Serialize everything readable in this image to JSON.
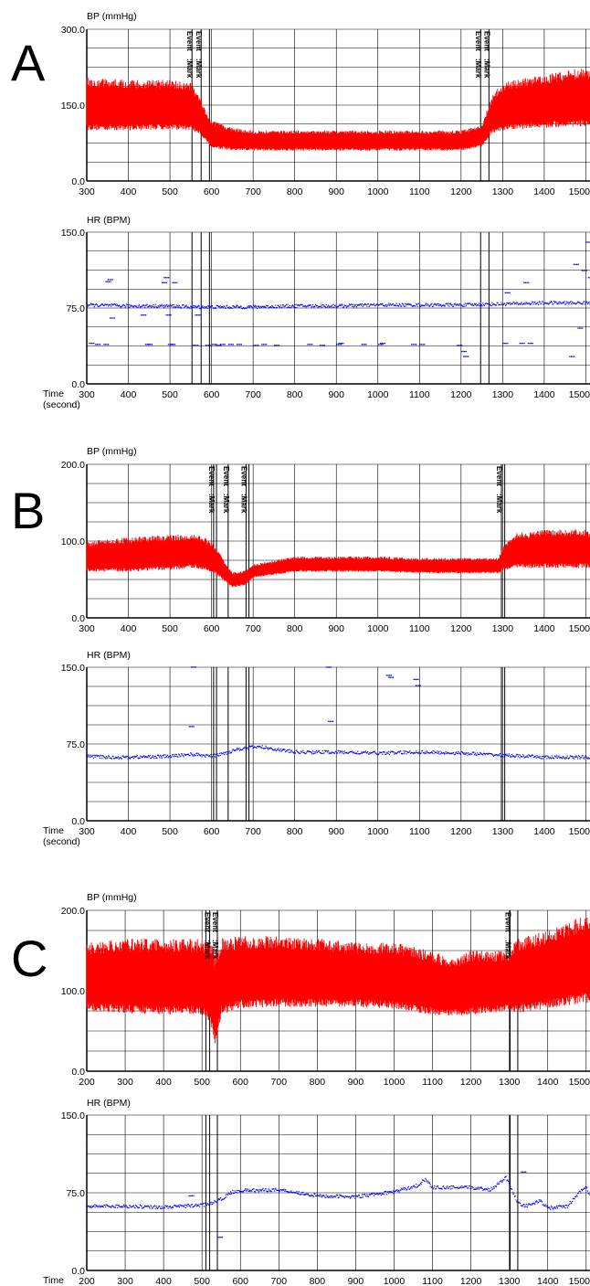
{
  "colors": {
    "bp": "#ff0000",
    "hr": "#0000ff",
    "grid": "#000000",
    "background": "#ffffff"
  },
  "event_label": "Event",
  "mark_label": ":Mark",
  "time_label_line1": "Time",
  "time_label_line2": "(second)",
  "chart_data": [
    {
      "panel": "A",
      "type": "line",
      "title": "",
      "signal": "bp",
      "band": true,
      "ylabel": "BP (mmHg)",
      "ylim": [
        0,
        300
      ],
      "yticks": [
        "0.0",
        "150.0",
        "300.0"
      ],
      "ytick_values": [
        0,
        150,
        300
      ],
      "xlabel": "",
      "xlim": [
        300,
        1510
      ],
      "xticks": [
        "300",
        "400",
        "500",
        "600",
        "700",
        "800",
        "900",
        "1000",
        "1100",
        "1200",
        "1300",
        "1400",
        "1500"
      ],
      "xtick_values": [
        300,
        400,
        500,
        600,
        700,
        800,
        900,
        1000,
        1100,
        1200,
        1300,
        1400,
        1500
      ],
      "event_marks": [
        553,
        575,
        1247,
        1267
      ],
      "event_lines": [
        553,
        575,
        595,
        1247,
        1267
      ],
      "series": [
        {
          "x": [
            300,
            400,
            500,
            550,
            575,
            600,
            650,
            700,
            800,
            900,
            1000,
            1100,
            1200,
            1250,
            1275,
            1300,
            1400,
            1500,
            1510
          ],
          "high": [
            205,
            200,
            200,
            195,
            160,
            120,
            105,
            100,
            100,
            100,
            100,
            100,
            100,
            110,
            170,
            195,
            210,
            225,
            220
          ],
          "low": [
            100,
            100,
            102,
            100,
            90,
            65,
            60,
            60,
            60,
            60,
            60,
            60,
            60,
            68,
            95,
            100,
            105,
            108,
            108
          ]
        }
      ]
    },
    {
      "panel": "A",
      "type": "scatter",
      "title": "",
      "signal": "hr",
      "ylabel": "HR (BPM)",
      "ylim": [
        0,
        150
      ],
      "yticks": [
        "0.0",
        "75.0",
        "150.0"
      ],
      "ytick_values": [
        0,
        75,
        150
      ],
      "xlabel": "Time (second)",
      "xlim": [
        300,
        1510
      ],
      "xticks": [
        "300",
        "400",
        "500",
        "600",
        "700",
        "800",
        "900",
        "1000",
        "1100",
        "1200",
        "1300",
        "1400",
        "1500"
      ],
      "xtick_values": [
        300,
        400,
        500,
        600,
        700,
        800,
        900,
        1000,
        1100,
        1200,
        1300,
        1400,
        1500
      ],
      "event_lines": [
        553,
        575,
        595,
        1247,
        1267
      ],
      "series": [
        {
          "trend_x": [
            300,
            400,
            500,
            550,
            600,
            700,
            800,
            900,
            1000,
            1100,
            1200,
            1300,
            1400,
            1500,
            1510
          ],
          "trend_y": [
            78,
            77,
            77,
            76,
            76,
            76,
            77,
            77,
            78,
            78,
            78,
            79,
            80,
            80,
            80
          ],
          "outliers_x": [
            305,
            320,
            340,
            345,
            350,
            355,
            430,
            440,
            445,
            480,
            485,
            490,
            495,
            500,
            505,
            555,
            560,
            585,
            600,
            610,
            620,
            640,
            660,
            700,
            720,
            750,
            830,
            860,
            900,
            905,
            960,
            1000,
            1005,
            1080,
            1100,
            1190,
            1200,
            1205,
            1300,
            1305,
            1340,
            1350,
            1360,
            1460,
            1470,
            1480,
            1490,
            1500,
            1505,
            1510
          ],
          "outliers_y": [
            40,
            39,
            39,
            101,
            103,
            65,
            68,
            39,
            39,
            100,
            105,
            68,
            39,
            39,
            100,
            38,
            68,
            38,
            39,
            38,
            39,
            39,
            39,
            38,
            39,
            38,
            39,
            38,
            39,
            40,
            39,
            39,
            40,
            39,
            39,
            38,
            32,
            27,
            40,
            90,
            40,
            100,
            40,
            27,
            118,
            55,
            112,
            140,
            105,
            40
          ]
        }
      ]
    },
    {
      "panel": "B",
      "type": "line",
      "title": "",
      "signal": "bp",
      "band": true,
      "ylabel": "BP (mmHg)",
      "ylim": [
        0,
        200
      ],
      "yticks": [
        "0.0",
        "100.0",
        "200.0"
      ],
      "ytick_values": [
        0,
        100,
        200
      ],
      "xlabel": "",
      "xlim": [
        300,
        1510
      ],
      "xticks": [
        "300",
        "400",
        "500",
        "600",
        "700",
        "800",
        "900",
        "1000",
        "1100",
        "1200",
        "1300",
        "1400",
        "1500"
      ],
      "xtick_values": [
        300,
        400,
        500,
        600,
        700,
        800,
        900,
        1000,
        1100,
        1200,
        1300,
        1400,
        1500
      ],
      "event_marks": [
        605,
        640,
        683,
        1297
      ],
      "event_lines": [
        605,
        612,
        640,
        683,
        690,
        1297,
        1305
      ],
      "series": [
        {
          "x": [
            300,
            400,
            500,
            560,
            600,
            630,
            650,
            680,
            700,
            800,
            900,
            1000,
            1100,
            1200,
            1290,
            1300,
            1330,
            1400,
            1500,
            1510
          ],
          "high": [
            100,
            105,
            108,
            110,
            100,
            75,
            60,
            62,
            70,
            80,
            80,
            80,
            78,
            78,
            78,
            92,
            110,
            115,
            115,
            112
          ],
          "low": [
            60,
            60,
            62,
            65,
            60,
            48,
            40,
            42,
            52,
            60,
            60,
            60,
            58,
            58,
            58,
            62,
            65,
            65,
            65,
            65
          ]
        }
      ]
    },
    {
      "panel": "B",
      "type": "scatter",
      "title": "",
      "signal": "hr",
      "ylabel": "HR (BPM)",
      "ylim": [
        0,
        150
      ],
      "yticks": [
        "0.0",
        "75.0",
        "150.0"
      ],
      "ytick_values": [
        0,
        75,
        150
      ],
      "xlabel": "Time (second)",
      "xlim": [
        300,
        1510
      ],
      "xticks": [
        "300",
        "400",
        "500",
        "600",
        "700",
        "800",
        "900",
        "1000",
        "1100",
        "1200",
        "1300",
        "1400",
        "1500"
      ],
      "xtick_values": [
        300,
        400,
        500,
        600,
        700,
        800,
        900,
        1000,
        1100,
        1200,
        1300,
        1400,
        1500
      ],
      "event_lines": [
        605,
        612,
        640,
        683,
        690,
        1297,
        1305
      ],
      "series": [
        {
          "trend_x": [
            300,
            360,
            400,
            500,
            550,
            600,
            640,
            660,
            700,
            720,
            800,
            900,
            1000,
            1100,
            1200,
            1300,
            1400,
            1500,
            1510
          ],
          "trend_y": [
            63,
            62,
            62,
            63,
            65,
            63,
            67,
            70,
            72,
            72,
            67,
            67,
            66,
            67,
            66,
            64,
            62,
            62,
            62
          ],
          "outliers_x": [
            545,
            550,
            875,
            880,
            1020,
            1025,
            1085,
            1090
          ],
          "outliers_y": [
            92,
            150,
            150,
            97,
            142,
            140,
            138,
            132
          ]
        }
      ]
    },
    {
      "panel": "C",
      "type": "line",
      "title": "",
      "signal": "bp",
      "band": true,
      "ylabel": "BP (mmHg)",
      "ylim": [
        0,
        200
      ],
      "yticks": [
        "0.0",
        "100.0",
        "200.0"
      ],
      "ytick_values": [
        0,
        100,
        200
      ],
      "xlabel": "",
      "xlim": [
        200,
        1510
      ],
      "xticks": [
        "200",
        "300",
        "400",
        "500",
        "600",
        "700",
        "800",
        "900",
        "1000",
        "1100",
        "1200",
        "1300",
        "1400",
        "1500"
      ],
      "xtick_values": [
        200,
        300,
        400,
        500,
        600,
        700,
        800,
        900,
        1000,
        1100,
        1200,
        1300,
        1400,
        1500
      ],
      "event_marks": [
        520,
        540,
        1302
      ],
      "event_lines": [
        510,
        520,
        540,
        1302,
        1322
      ],
      "series": [
        {
          "x": [
            200,
            300,
            400,
            500,
            520,
            535,
            550,
            600,
            700,
            800,
            900,
            1000,
            1100,
            1150,
            1200,
            1300,
            1320,
            1400,
            1500,
            1510
          ],
          "high": [
            160,
            165,
            165,
            165,
            160,
            150,
            165,
            168,
            168,
            165,
            160,
            160,
            150,
            140,
            150,
            150,
            165,
            175,
            195,
            190
          ],
          "low": [
            75,
            72,
            70,
            70,
            60,
            30,
            70,
            78,
            80,
            80,
            80,
            78,
            70,
            68,
            70,
            75,
            72,
            78,
            85,
            85
          ]
        }
      ]
    },
    {
      "panel": "C",
      "type": "scatter",
      "title": "",
      "signal": "hr",
      "ylabel": "HR (BPM)",
      "ylim": [
        0,
        150
      ],
      "yticks": [
        "0.0",
        "75.0",
        "150.0"
      ],
      "ytick_values": [
        0,
        75,
        150
      ],
      "xlabel": "Time (second)",
      "xlim": [
        200,
        1510
      ],
      "xticks": [
        "200",
        "300",
        "400",
        "500",
        "600",
        "700",
        "800",
        "900",
        "1000",
        "1100",
        "1200",
        "1300",
        "1400",
        "1500"
      ],
      "xtick_values": [
        200,
        300,
        400,
        500,
        600,
        700,
        800,
        900,
        1000,
        1100,
        1200,
        1300,
        1400,
        1500
      ],
      "event_lines": [
        510,
        520,
        540,
        1302,
        1322
      ],
      "series": [
        {
          "trend_x": [
            200,
            300,
            400,
            500,
            540,
            580,
            600,
            700,
            800,
            900,
            1000,
            1060,
            1080,
            1100,
            1200,
            1250,
            1290,
            1320,
            1340,
            1380,
            1400,
            1450,
            1480,
            1500,
            1510
          ],
          "trend_y": [
            62,
            62,
            61,
            63,
            67,
            76,
            77,
            78,
            72,
            71,
            76,
            82,
            88,
            80,
            80,
            78,
            90,
            66,
            62,
            67,
            60,
            62,
            75,
            80,
            70
          ],
          "outliers_x": [
            465,
            540,
            1330
          ],
          "outliers_y": [
            72,
            32,
            95
          ]
        }
      ]
    }
  ],
  "panel_labels": [
    "A",
    "B",
    "C"
  ]
}
